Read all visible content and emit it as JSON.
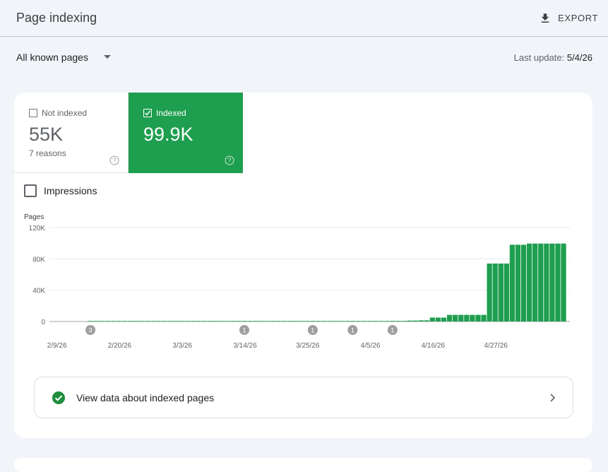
{
  "header": {
    "title": "Page indexing",
    "export_label": "EXPORT"
  },
  "filter": {
    "selected": "All known pages",
    "last_update_label": "Last update:",
    "last_update_value": "5/4/26"
  },
  "tiles": {
    "not_indexed": {
      "label": "Not indexed",
      "value": "55K",
      "sub": "7 reasons",
      "checked": false
    },
    "indexed": {
      "label": "Indexed",
      "value": "99.9K",
      "checked": true
    }
  },
  "impressions": {
    "label": "Impressions",
    "checked": false
  },
  "colors": {
    "indexed_green": "#1e9e4f",
    "annotation_grey": "#9e9e9e"
  },
  "chart_data": {
    "type": "bar",
    "ylabel": "Pages",
    "ylim": [
      0,
      120000
    ],
    "yticks": [
      {
        "value": 0,
        "label": "0"
      },
      {
        "value": 40000,
        "label": "40K"
      },
      {
        "value": 80000,
        "label": "80K"
      },
      {
        "value": 120000,
        "label": "120K"
      }
    ],
    "xticks": [
      "2/9/26",
      "2/20/26",
      "3/3/26",
      "3/14/26",
      "3/25/26",
      "4/5/26",
      "4/16/26",
      "4/27/26"
    ],
    "start_date": "2/9/26",
    "values": [
      0,
      0,
      0,
      0,
      0,
      0,
      700,
      700,
      700,
      700,
      700,
      700,
      700,
      700,
      700,
      700,
      700,
      700,
      700,
      700,
      700,
      700,
      700,
      700,
      700,
      700,
      700,
      700,
      700,
      700,
      700,
      700,
      700,
      700,
      700,
      700,
      700,
      700,
      700,
      700,
      700,
      700,
      700,
      700,
      700,
      700,
      700,
      700,
      700,
      700,
      700,
      700,
      700,
      700,
      700,
      700,
      700,
      700,
      700,
      800,
      800,
      800,
      1200,
      1200,
      1500,
      1500,
      5000,
      5000,
      5000,
      8500,
      8500,
      8500,
      8500,
      8500,
      8500,
      8500,
      74000,
      74000,
      74000,
      74000,
      98000,
      98000,
      98000,
      99500,
      99500,
      99500,
      99500,
      99500,
      99500,
      99500
    ],
    "annotations": [
      {
        "date": "2/15/26",
        "label": "3"
      },
      {
        "date": "3/14/26",
        "label": "1"
      },
      {
        "date": "3/26/26",
        "label": "1"
      },
      {
        "date": "4/2/26",
        "label": "1"
      },
      {
        "date": "4/9/26",
        "label": "1"
      }
    ]
  },
  "link": {
    "label": "View data about indexed pages"
  }
}
